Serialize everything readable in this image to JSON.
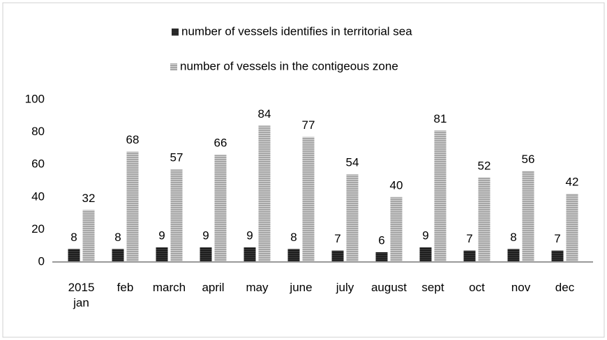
{
  "chart_data": {
    "type": "bar",
    "categories": [
      "2015 jan",
      "feb",
      "march",
      "april",
      "may",
      "june",
      "july",
      "august",
      "sept",
      "oct",
      "nov",
      "dec"
    ],
    "series": [
      {
        "name": "number of vessels identifies in territorial sea",
        "color": "#333333",
        "values": [
          8,
          8,
          9,
          9,
          9,
          8,
          7,
          6,
          9,
          7,
          8,
          7
        ]
      },
      {
        "name": "number of vessels in the contigeous zone",
        "color": "#a6a6a6",
        "values": [
          32,
          68,
          57,
          66,
          84,
          77,
          54,
          40,
          81,
          52,
          56,
          42
        ]
      }
    ],
    "ylim": [
      0,
      100
    ],
    "yticks": [
      0,
      20,
      40,
      60,
      80,
      100
    ],
    "grid": false,
    "legend": "top"
  }
}
